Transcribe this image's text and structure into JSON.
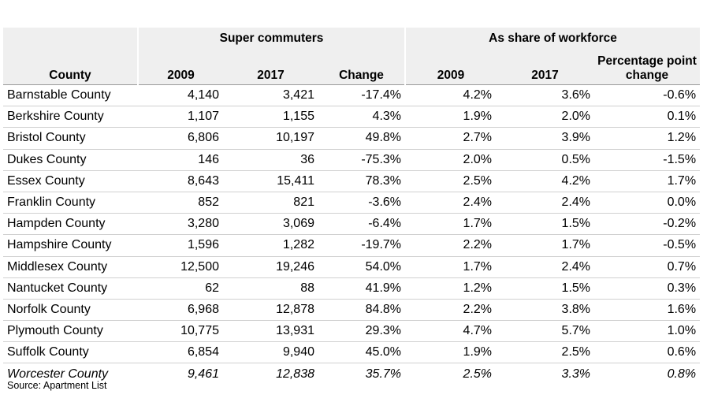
{
  "table": {
    "group_headers": {
      "super_commuters": "Super commuters",
      "share": "As share of workforce"
    },
    "columns": [
      "County",
      "2009",
      "2017",
      "Change",
      "2009",
      "2017",
      "Percentage point change"
    ],
    "rows": [
      [
        "Barnstable County",
        "4,140",
        "3,421",
        "-17.4%",
        "4.2%",
        "3.6%",
        "-0.6%"
      ],
      [
        "Berkshire County",
        "1,107",
        "1,155",
        "4.3%",
        "1.9%",
        "2.0%",
        "0.1%"
      ],
      [
        "Bristol County",
        "6,806",
        "10,197",
        "49.8%",
        "2.7%",
        "3.9%",
        "1.2%"
      ],
      [
        "Dukes County",
        "146",
        "36",
        "-75.3%",
        "2.0%",
        "0.5%",
        "-1.5%"
      ],
      [
        "Essex County",
        "8,643",
        "15,411",
        "78.3%",
        "2.5%",
        "4.2%",
        "1.7%"
      ],
      [
        "Franklin County",
        "852",
        "821",
        "-3.6%",
        "2.4%",
        "2.4%",
        "0.0%"
      ],
      [
        "Hampden County",
        "3,280",
        "3,069",
        "-6.4%",
        "1.7%",
        "1.5%",
        "-0.2%"
      ],
      [
        "Hampshire County",
        "1,596",
        "1,282",
        "-19.7%",
        "2.2%",
        "1.7%",
        "-0.5%"
      ],
      [
        "Middlesex County",
        "12,500",
        "19,246",
        "54.0%",
        "1.7%",
        "2.4%",
        "0.7%"
      ],
      [
        "Nantucket County",
        "62",
        "88",
        "41.9%",
        "1.2%",
        "1.5%",
        "0.3%"
      ],
      [
        "Norfolk County",
        "6,968",
        "12,878",
        "84.8%",
        "2.2%",
        "3.8%",
        "1.6%"
      ],
      [
        "Plymouth County",
        "10,775",
        "13,931",
        "29.3%",
        "4.7%",
        "5.7%",
        "1.0%"
      ],
      [
        "Suffolk County",
        "6,854",
        "9,940",
        "45.0%",
        "1.9%",
        "2.5%",
        "0.6%"
      ],
      [
        "Worcester County",
        "9,461",
        "12,838",
        "35.7%",
        "2.5%",
        "3.3%",
        "0.8%"
      ]
    ]
  },
  "source": "Source: Apartment List"
}
